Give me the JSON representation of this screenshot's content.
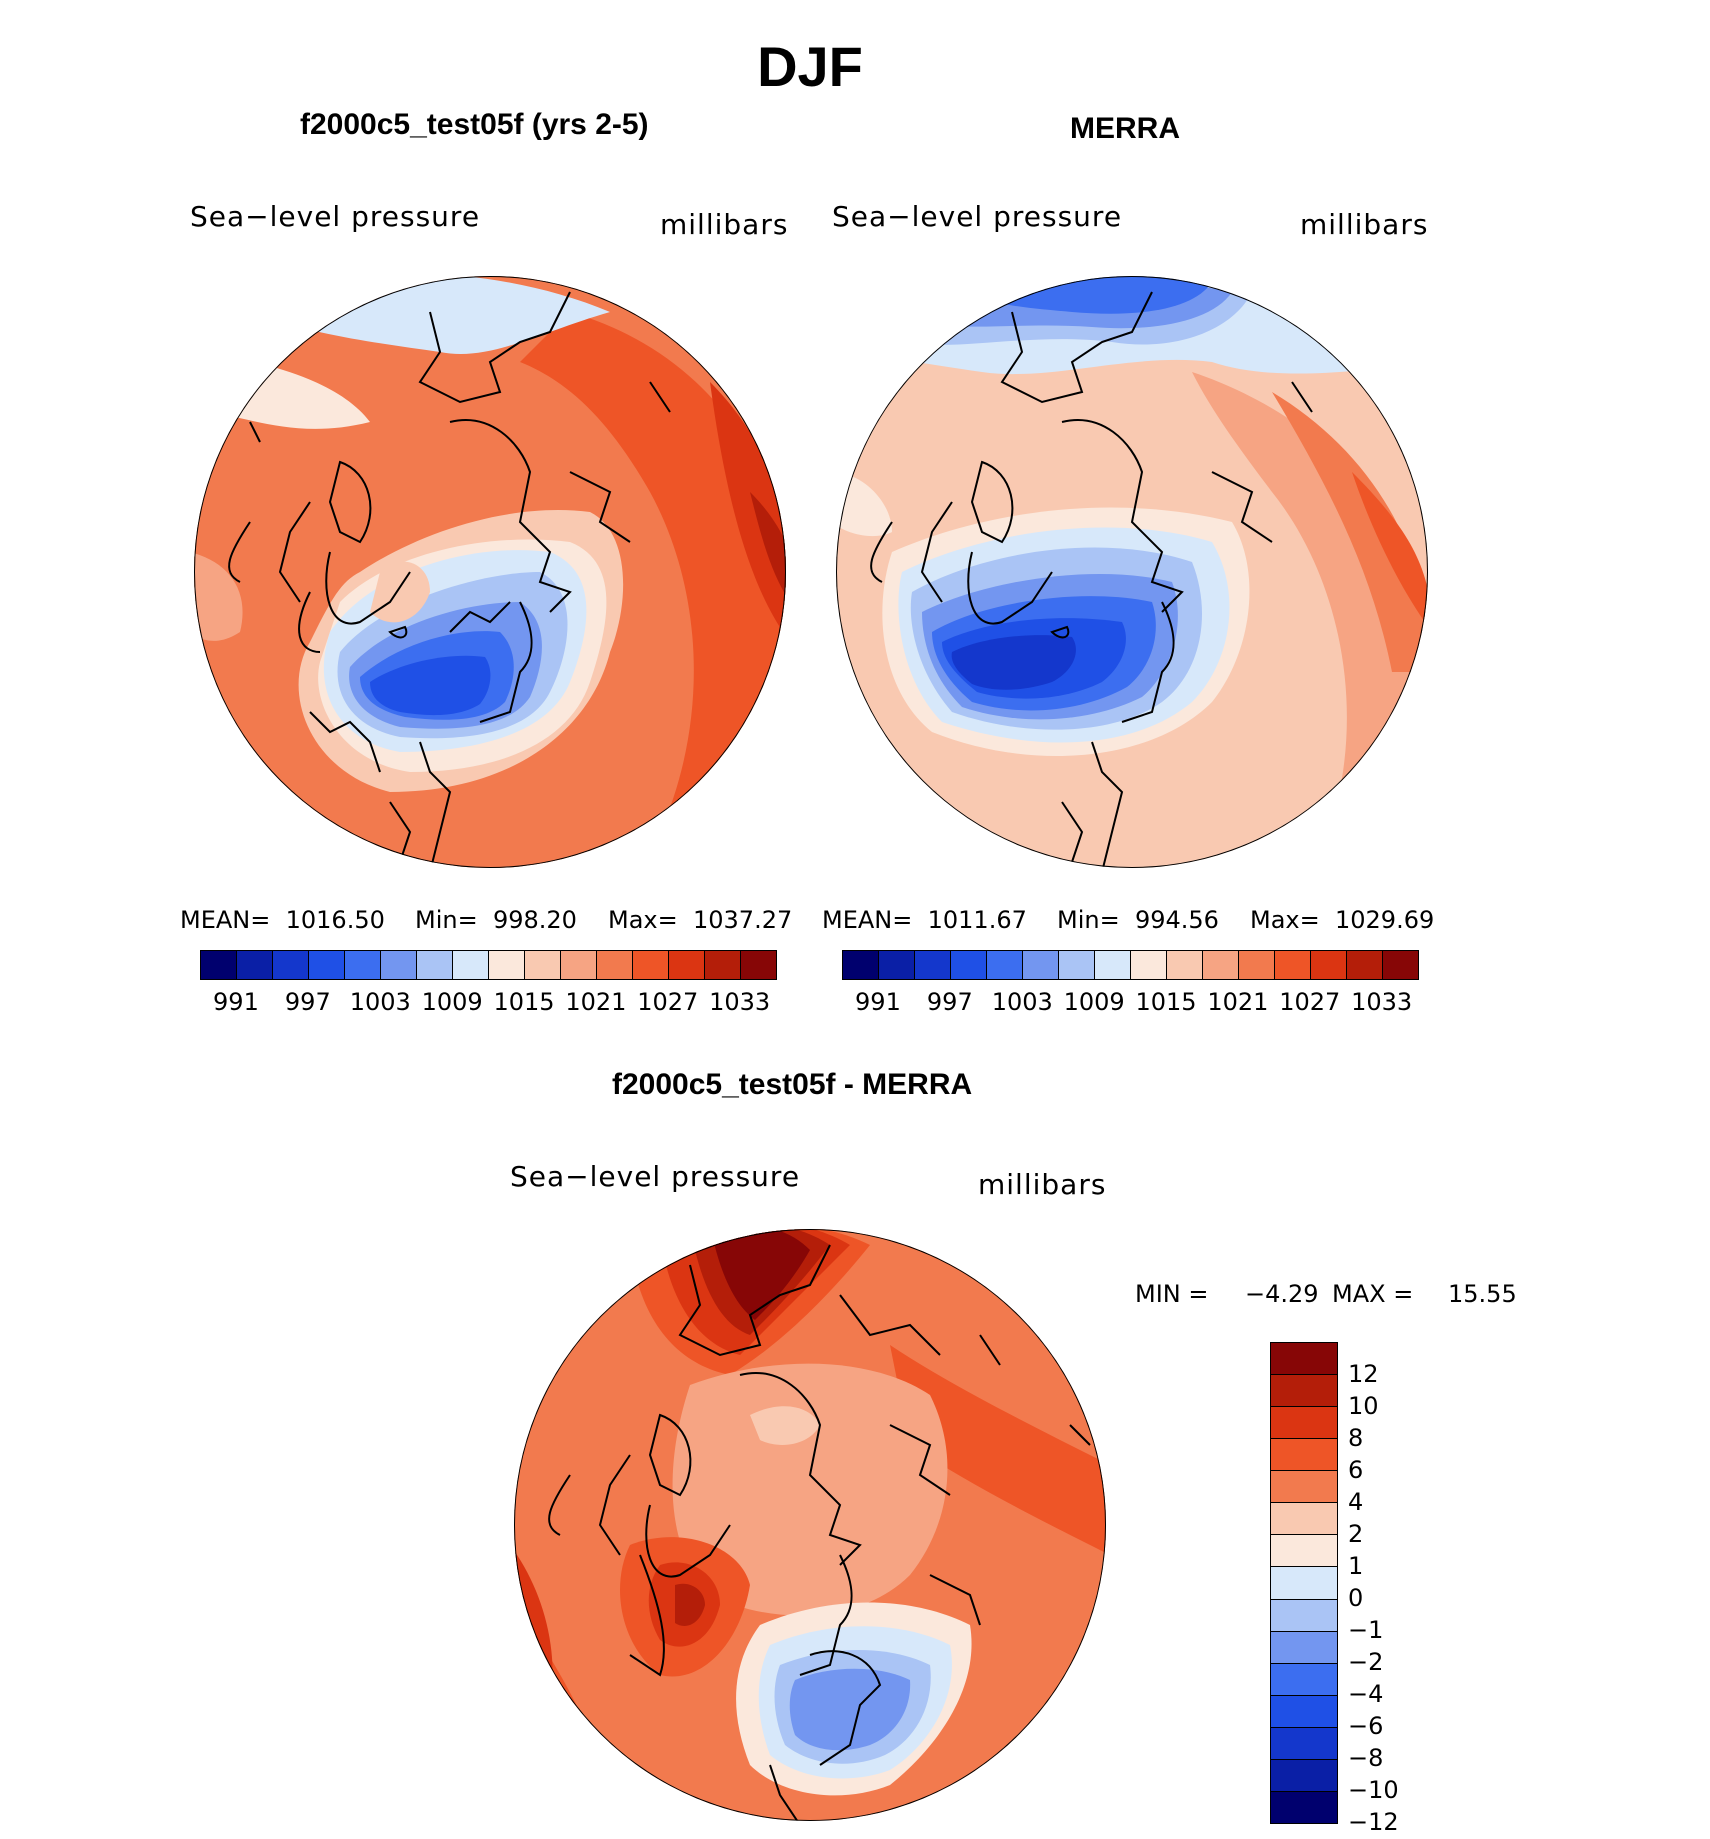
{
  "title": "DJF",
  "panels": [
    {
      "heading": "f2000c5_test05f (yrs 2-5)",
      "variable": "Sea−level pressure",
      "units": "millibars",
      "mean_text": "MEAN=  1016.50",
      "min_text": "Min=  998.20",
      "max_text": "Max=  1037.27"
    },
    {
      "heading": "MERRA",
      "variable": "Sea−level pressure",
      "units": "millibars",
      "mean_text": "MEAN=  1011.67",
      "min_text": "Min=  994.56",
      "max_text": "Max=  1029.69"
    }
  ],
  "abs_colorbar": {
    "colors": [
      "#00006e",
      "#0a1fa6",
      "#1437cc",
      "#1f50e6",
      "#3c6ef0",
      "#7396f0",
      "#aac4f5",
      "#d7e8fa",
      "#fbe8dc",
      "#f9c9b1",
      "#f6a483",
      "#f27a4e",
      "#ee5527",
      "#db3512",
      "#b41e09",
      "#870606"
    ],
    "labels": [
      "991",
      "997",
      "1003",
      "1009",
      "1015",
      "1021",
      "1027",
      "1033"
    ]
  },
  "diff_panel": {
    "heading": "f2000c5_test05f - MERRA",
    "variable": "Sea−level pressure",
    "units": "millibars",
    "min_label": "MIN =",
    "min_value": "−4.29",
    "max_label": "MAX =",
    "max_value": "15.55"
  },
  "diff_colorbar": {
    "colors": [
      "#870606",
      "#b41e09",
      "#db3512",
      "#ee5527",
      "#f27a4e",
      "#f9c9b1",
      "#fbe8dc",
      "#d7e8fa",
      "#aac4f5",
      "#7396f0",
      "#3c6ef0",
      "#1f50e6",
      "#1437cc",
      "#0a1fa6",
      "#00006e"
    ],
    "labels": [
      "12",
      "10",
      "8",
      "6",
      "4",
      "2",
      "1",
      "0",
      "−1",
      "−2",
      "−4",
      "−6",
      "−8",
      "−10",
      "−12"
    ]
  }
}
